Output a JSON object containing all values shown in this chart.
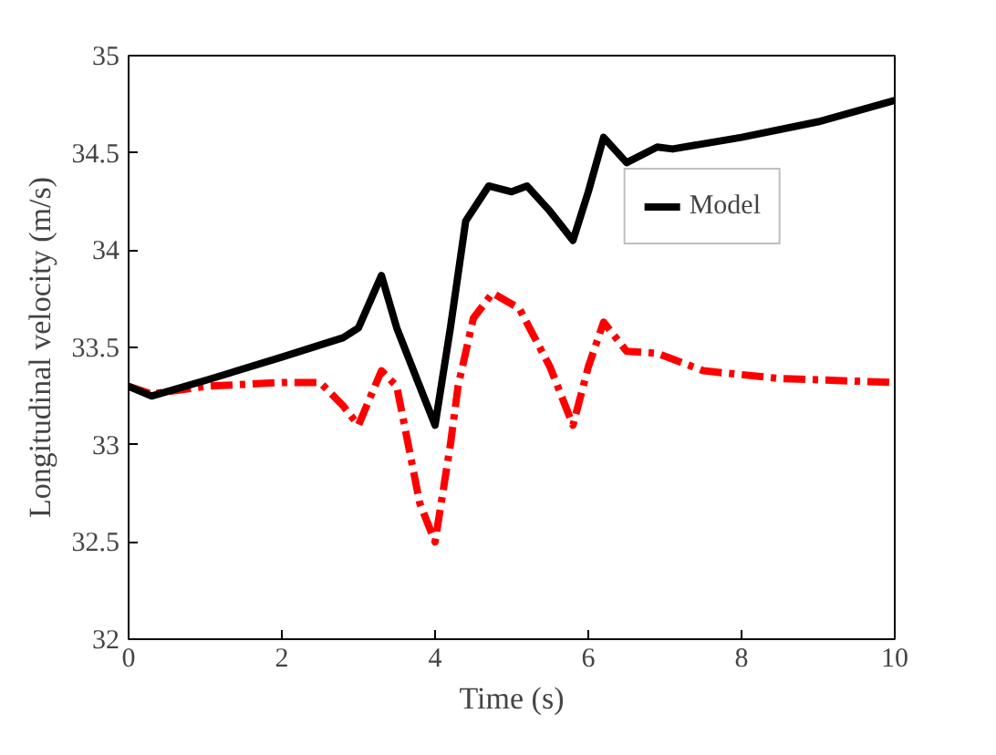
{
  "chart_data": {
    "type": "line",
    "xlabel": "Time (s)",
    "ylabel": "Longitudinal velocity (m/s)",
    "xlim": [
      0,
      10
    ],
    "ylim": [
      32,
      35
    ],
    "xticks": [
      0,
      2,
      4,
      6,
      8,
      10
    ],
    "yticks": [
      32,
      {
        "value": 32.5,
        "label": "32.5"
      },
      33,
      {
        "value": 33.5,
        "label": "33.5"
      },
      34,
      {
        "value": 34.5,
        "label": "34.5"
      },
      35
    ],
    "grid": false,
    "legend": "top right",
    "series": [
      {
        "color": "#ff0000",
        "line_style": "dashed",
        "x": [
          0,
          0.3,
          1,
          2,
          2.5,
          2.8,
          3.0,
          3.3,
          3.5,
          3.8,
          4.0,
          4.2,
          4.3,
          4.5,
          4.75,
          5.1,
          5.5,
          5.8,
          6.0,
          6.2,
          6.5,
          6.9,
          7.5,
          8.5,
          10
        ],
        "values": [
          33.3,
          33.26,
          33.3,
          33.32,
          33.32,
          33.2,
          33.1,
          33.38,
          33.3,
          32.7,
          32.5,
          33.0,
          33.3,
          33.65,
          33.78,
          33.7,
          33.4,
          33.1,
          33.4,
          33.63,
          33.48,
          33.47,
          33.38,
          33.34,
          33.32
        ]
      },
      {
        "name": "Model",
        "color": "#000000",
        "line_style": "solid",
        "x": [
          0,
          0.3,
          1,
          2,
          2.8,
          3.0,
          3.3,
          3.5,
          3.8,
          4.0,
          4.2,
          4.4,
          4.7,
          5.0,
          5.2,
          5.5,
          5.8,
          6.0,
          6.2,
          6.5,
          6.9,
          7.1,
          8,
          9,
          10
        ],
        "values": [
          33.3,
          33.25,
          33.33,
          33.45,
          33.55,
          33.6,
          33.87,
          33.6,
          33.3,
          33.1,
          33.6,
          34.15,
          34.33,
          34.3,
          34.33,
          34.2,
          34.05,
          34.3,
          34.58,
          34.45,
          34.53,
          34.52,
          34.58,
          34.66,
          34.77
        ]
      }
    ]
  }
}
